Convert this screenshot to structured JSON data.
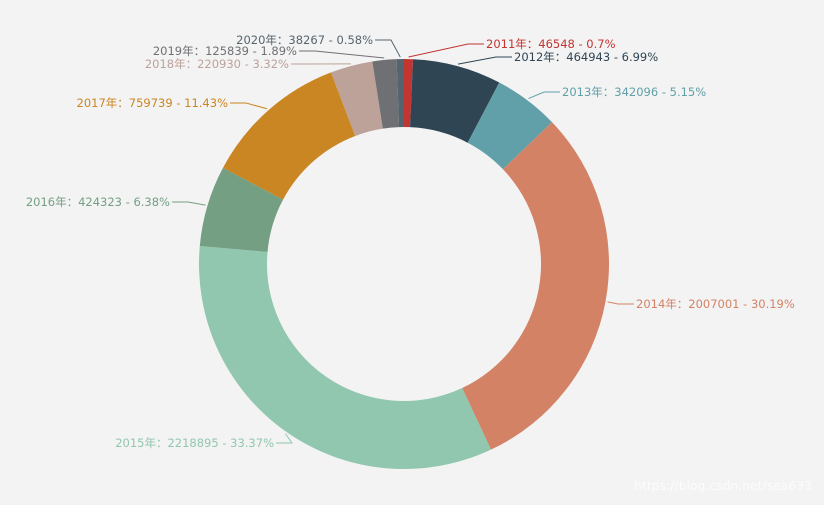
{
  "chart_data": {
    "type": "pie",
    "variant": "donut",
    "title": "",
    "legend": "none",
    "label_format": "{name}：{value} - {percent}%",
    "slices": [
      {
        "name": "2011年",
        "value": 46548,
        "percent": "0.7",
        "color": "#c23531"
      },
      {
        "name": "2012年",
        "value": 464943,
        "percent": "6.99",
        "color": "#2f4554"
      },
      {
        "name": "2013年",
        "value": 342096,
        "percent": "5.15",
        "color": "#61a0a8"
      },
      {
        "name": "2014年",
        "value": 2007001,
        "percent": "30.19",
        "color": "#d48265"
      },
      {
        "name": "2015年",
        "value": 2218895,
        "percent": "33.37",
        "color": "#91c7ae"
      },
      {
        "name": "2016年",
        "value": 424323,
        "percent": "6.38",
        "color": "#749f83"
      },
      {
        "name": "2017年",
        "value": 759739,
        "percent": "11.43",
        "color": "#ca8622"
      },
      {
        "name": "2018年",
        "value": 220930,
        "percent": "3.32",
        "color": "#bda29a"
      },
      {
        "name": "2019年",
        "value": 125839,
        "percent": "1.89",
        "color": "#6e7074"
      },
      {
        "name": "2020年",
        "value": 38267,
        "percent": "0.58",
        "color": "#546570"
      }
    ]
  },
  "watermark": "https://blog.csdn.net/sea633"
}
